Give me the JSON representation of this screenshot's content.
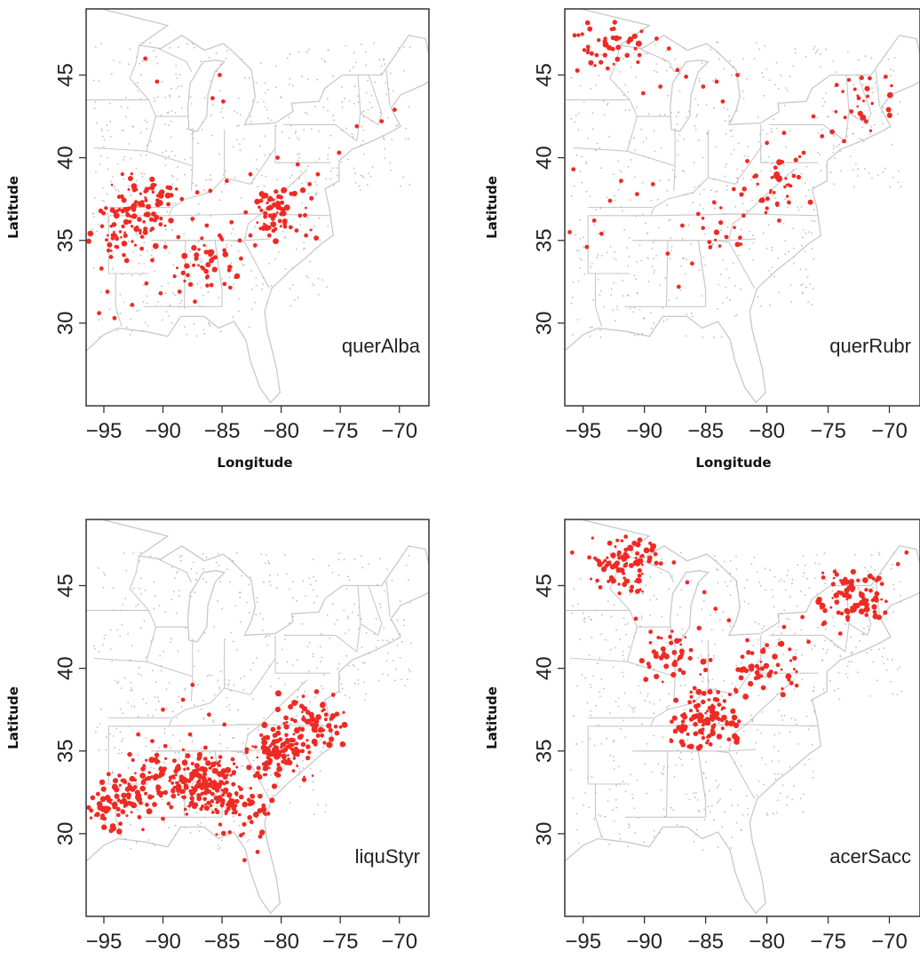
{
  "figure": {
    "title": ""
  },
  "colors": {
    "presence": "#ee2a24",
    "background_plots": "#bdbdbd",
    "state_lines": "#c8c8c8",
    "frame": "#333333"
  },
  "chart_data": [
    {
      "type": "scatter",
      "panel_label": "querAlba",
      "xlabel": "Longitude",
      "ylabel": "Latitude",
      "xticks": [
        "-95",
        "-90",
        "-85",
        "-80",
        "-75",
        "-70"
      ],
      "yticks": [
        "30",
        "35",
        "40",
        "45"
      ],
      "xlim": [
        -96.5,
        -67.5
      ],
      "ylim": [
        25.0,
        49.0
      ],
      "series": [
        {
          "values": [
            [
              -91.5,
              46.0
            ],
            [
              -90.5,
              44.6
            ],
            [
              -85.8,
              43.6
            ],
            [
              -85.2,
              45.0
            ],
            [
              -84.9,
              43.4
            ],
            [
              -71.5,
              42.2
            ],
            [
              -70.4,
              42.9
            ],
            [
              -73.6,
              41.9
            ],
            [
              -75.1,
              40.3
            ],
            [
              -89.6,
              38.2
            ],
            [
              -88.4,
              37.5
            ],
            [
              -87.1,
              37.9
            ],
            [
              -86.0,
              38.0
            ],
            [
              -84.6,
              38.6
            ],
            [
              -82.6,
              39.0
            ],
            [
              -80.3,
              40.0
            ],
            [
              -78.6,
              39.6
            ],
            [
              -76.9,
              39.0
            ],
            [
              -77.6,
              38.4
            ],
            [
              -78.9,
              37.8
            ],
            [
              -79.9,
              36.9
            ],
            [
              -80.7,
              36.3
            ],
            [
              -81.5,
              35.7
            ],
            [
              -82.6,
              35.3
            ],
            [
              -83.5,
              35.0
            ],
            [
              -84.8,
              34.4
            ],
            [
              -85.8,
              33.9
            ],
            [
              -86.6,
              33.3
            ],
            [
              -87.9,
              32.9
            ],
            [
              -88.6,
              31.9
            ],
            [
              -87.3,
              31.3
            ],
            [
              -85.9,
              32.3
            ],
            [
              -84.4,
              33.2
            ],
            [
              -83.4,
              33.9
            ],
            [
              -82.2,
              34.7
            ],
            [
              -81.0,
              35.3
            ],
            [
              -79.7,
              36.0
            ],
            [
              -78.7,
              35.6
            ],
            [
              -77.9,
              35.3
            ],
            [
              -78.4,
              36.5
            ],
            [
              -80.0,
              37.6
            ],
            [
              -81.7,
              37.4
            ],
            [
              -83.0,
              36.7
            ],
            [
              -84.2,
              36.1
            ],
            [
              -85.2,
              35.3
            ],
            [
              -86.3,
              35.9
            ],
            [
              -87.5,
              36.3
            ],
            [
              -88.7,
              35.2
            ],
            [
              -89.8,
              34.6
            ],
            [
              -90.9,
              33.8
            ],
            [
              -91.8,
              34.5
            ],
            [
              -92.3,
              35.7
            ],
            [
              -93.2,
              36.9
            ],
            [
              -93.9,
              35.1
            ],
            [
              -94.4,
              34.0
            ],
            [
              -95.2,
              33.3
            ],
            [
              -94.7,
              31.9
            ],
            [
              -95.4,
              30.6
            ],
            [
              -94.1,
              30.3
            ],
            [
              -92.6,
              31.1
            ],
            [
              -91.4,
              32.4
            ],
            [
              -90.2,
              31.8
            ],
            [
              -79.2,
              35.8
            ]
          ]
        }
      ],
      "clusters": [
        {
          "center": [
            -91.5,
            37.3
          ],
          "count": 70
        },
        {
          "center": [
            -93.5,
            35.6
          ],
          "count": 45
        },
        {
          "center": [
            -80.0,
            36.6
          ],
          "count": 55
        },
        {
          "center": [
            -86.5,
            33.6
          ],
          "count": 40
        }
      ]
    },
    {
      "type": "scatter",
      "panel_label": "querRubr",
      "xlabel": "Longitude",
      "ylabel": "Latitude",
      "xticks": [
        "-95",
        "-90",
        "-85",
        "-80",
        "-75",
        "-70"
      ],
      "yticks": [
        "30",
        "35",
        "40",
        "45"
      ],
      "xlim": [
        -96.5,
        -67.5
      ],
      "ylim": [
        25.0,
        49.0
      ],
      "series": [
        {
          "values": [
            [
              -95.7,
              47.4
            ],
            [
              -94.6,
              46.7
            ],
            [
              -93.9,
              46.2
            ],
            [
              -92.5,
              47.8
            ],
            [
              -91.3,
              47.0
            ],
            [
              -90.4,
              46.2
            ],
            [
              -89.0,
              47.2
            ],
            [
              -88.0,
              46.6
            ],
            [
              -87.3,
              45.3
            ],
            [
              -86.6,
              44.9
            ],
            [
              -85.2,
              44.3
            ],
            [
              -84.1,
              44.6
            ],
            [
              -83.6,
              43.4
            ],
            [
              -82.4,
              45.0
            ],
            [
              -74.3,
              44.4
            ],
            [
              -72.5,
              43.6
            ],
            [
              -71.6,
              44.8
            ],
            [
              -70.3,
              44.9
            ],
            [
              -71.9,
              42.2
            ],
            [
              -73.1,
              42.8
            ],
            [
              -76.2,
              42.5
            ],
            [
              -78.6,
              41.5
            ],
            [
              -80.0,
              40.9
            ],
            [
              -81.6,
              39.8
            ],
            [
              -79.3,
              39.4
            ],
            [
              -77.8,
              38.9
            ],
            [
              -82.7,
              38.1
            ],
            [
              -84.3,
              37.3
            ],
            [
              -85.6,
              36.6
            ],
            [
              -86.9,
              35.9
            ],
            [
              -88.1,
              34.2
            ],
            [
              -87.2,
              32.2
            ],
            [
              -94.1,
              36.2
            ],
            [
              -93.5,
              35.4
            ],
            [
              -94.7,
              34.6
            ],
            [
              -92.8,
              37.4
            ],
            [
              -96.1,
              35.5
            ],
            [
              -95.8,
              39.3
            ],
            [
              -91.9,
              38.6
            ],
            [
              -90.6,
              37.8
            ],
            [
              -89.3,
              38.4
            ],
            [
              -80.5,
              37.4
            ],
            [
              -81.9,
              36.5
            ],
            [
              -79.0,
              36.2
            ],
            [
              -83.3,
              35.2
            ],
            [
              -84.7,
              34.9
            ],
            [
              -86.1,
              33.6
            ],
            [
              -78.2,
              37.3
            ],
            [
              -77.0,
              40.3
            ],
            [
              -75.5,
              41.3
            ],
            [
              -73.7,
              41.0
            ],
            [
              -88.7,
              44.3
            ],
            [
              -90.1,
              43.9
            ],
            [
              -93.0,
              45.4
            ]
          ]
        }
      ],
      "clusters": [
        {
          "center": [
            -93.0,
            46.6
          ],
          "count": 35
        },
        {
          "center": [
            -79.5,
            38.6
          ],
          "count": 35
        },
        {
          "center": [
            -83.7,
            35.2
          ],
          "count": 12
        },
        {
          "center": [
            -72.5,
            43.3
          ],
          "count": 20
        }
      ]
    },
    {
      "type": "scatter",
      "panel_label": "liquStyr",
      "xlabel": "Longitude",
      "ylabel": "Latitude",
      "xticks": [
        "-95",
        "-90",
        "-85",
        "-80",
        "-75",
        "-70"
      ],
      "yticks": [
        "30",
        "35",
        "40",
        "45"
      ],
      "xlim": [
        -96.5,
        -67.5
      ],
      "ylim": [
        25.0,
        49.0
      ],
      "series": [
        {
          "values": [
            [
              -75.6,
              38.4
            ],
            [
              -76.2,
              37.2
            ],
            [
              -77.4,
              36.6
            ],
            [
              -78.7,
              36.3
            ],
            [
              -79.9,
              35.4
            ],
            [
              -81.1,
              34.6
            ],
            [
              -82.2,
              33.5
            ],
            [
              -83.4,
              32.7
            ],
            [
              -84.6,
              33.1
            ],
            [
              -85.8,
              32.4
            ],
            [
              -87.0,
              33.1
            ],
            [
              -88.2,
              32.2
            ],
            [
              -89.3,
              31.6
            ],
            [
              -90.4,
              32.6
            ],
            [
              -91.6,
              33.2
            ],
            [
              -92.9,
              32.2
            ],
            [
              -94.1,
              31.6
            ],
            [
              -95.1,
              31.1
            ],
            [
              -95.5,
              32.4
            ],
            [
              -93.6,
              30.6
            ],
            [
              -92.0,
              31.0
            ],
            [
              -90.0,
              30.9
            ],
            [
              -88.7,
              34.1
            ],
            [
              -89.8,
              35.3
            ],
            [
              -87.7,
              36.0
            ],
            [
              -86.4,
              35.2
            ],
            [
              -84.1,
              34.5
            ],
            [
              -82.9,
              35.1
            ],
            [
              -81.4,
              35.8
            ],
            [
              -80.2,
              36.4
            ],
            [
              -78.2,
              35.0
            ],
            [
              -77.1,
              35.4
            ],
            [
              -81.5,
              31.7
            ],
            [
              -82.5,
              30.7
            ],
            [
              -83.4,
              29.9
            ],
            [
              -82.0,
              28.9
            ],
            [
              -83.1,
              28.4
            ],
            [
              -92.1,
              36.0
            ],
            [
              -90.9,
              35.6
            ],
            [
              -88.3,
              38.1
            ],
            [
              -86.1,
              37.2
            ],
            [
              -84.8,
              36.6
            ],
            [
              -87.5,
              39.0
            ],
            [
              -90.0,
              37.5
            ],
            [
              -94.6,
              33.6
            ]
          ]
        }
      ],
      "clusters": [
        {
          "center": [
            -86.5,
            33.0
          ],
          "count": 160
        },
        {
          "center": [
            -80.0,
            35.0
          ],
          "count": 110
        },
        {
          "center": [
            -94.0,
            31.8
          ],
          "count": 70
        },
        {
          "center": [
            -90.8,
            33.3
          ],
          "count": 60
        },
        {
          "center": [
            -77.5,
            36.8
          ],
          "count": 60
        },
        {
          "center": [
            -83.5,
            31.5
          ],
          "count": 45
        }
      ]
    },
    {
      "type": "scatter",
      "panel_label": "acerSacc",
      "xlabel": "Longitude",
      "ylabel": "Latitude",
      "xticks": [
        "-95",
        "-90",
        "-85",
        "-80",
        "-75",
        "-70"
      ],
      "yticks": [
        "30",
        "35",
        "40",
        "45"
      ],
      "xlim": [
        -96.5,
        -67.5
      ],
      "ylim": [
        25.0,
        49.0
      ],
      "series": [
        {
          "values": [
            [
              -95.9,
              47.0
            ],
            [
              -94.5,
              46.7
            ],
            [
              -93.1,
              46.2
            ],
            [
              -91.6,
              46.6
            ],
            [
              -90.4,
              45.6
            ],
            [
              -89.1,
              46.9
            ],
            [
              -87.6,
              46.4
            ],
            [
              -86.5,
              45.2
            ],
            [
              -85.1,
              44.6
            ],
            [
              -84.2,
              43.6
            ],
            [
              -83.1,
              42.9
            ],
            [
              -81.6,
              41.7
            ],
            [
              -80.0,
              41.4
            ],
            [
              -78.6,
              42.5
            ],
            [
              -77.1,
              43.1
            ],
            [
              -75.4,
              43.8
            ],
            [
              -73.7,
              44.4
            ],
            [
              -72.1,
              44.2
            ],
            [
              -70.6,
              45.1
            ],
            [
              -69.3,
              46.3
            ],
            [
              -68.6,
              47.0
            ],
            [
              -71.2,
              43.4
            ],
            [
              -74.0,
              42.1
            ],
            [
              -76.6,
              41.6
            ],
            [
              -79.1,
              40.2
            ],
            [
              -80.9,
              39.4
            ],
            [
              -82.5,
              38.6
            ],
            [
              -83.9,
              37.8
            ],
            [
              -85.3,
              37.1
            ],
            [
              -86.7,
              36.3
            ],
            [
              -87.8,
              35.6
            ],
            [
              -84.6,
              35.4
            ],
            [
              -83.1,
              35.7
            ],
            [
              -85.9,
              38.8
            ],
            [
              -87.1,
              39.9
            ],
            [
              -88.4,
              40.9
            ],
            [
              -89.5,
              42.2
            ],
            [
              -90.7,
              43.0
            ],
            [
              -89.6,
              40.1
            ],
            [
              -87.9,
              41.9
            ],
            [
              -86.2,
              41.1
            ],
            [
              -84.6,
              40.5
            ],
            [
              -82.0,
              40.7
            ],
            [
              -78.0,
              39.1
            ],
            [
              -93.6,
              44.9
            ]
          ]
        }
      ],
      "clusters": [
        {
          "center": [
            -91.5,
            46.4
          ],
          "count": 90
        },
        {
          "center": [
            -85.0,
            37.0
          ],
          "count": 110
        },
        {
          "center": [
            -73.0,
            44.4
          ],
          "count": 80
        },
        {
          "center": [
            -87.5,
            41.0
          ],
          "count": 40
        },
        {
          "center": [
            -80.0,
            40.0
          ],
          "count": 45
        }
      ]
    }
  ]
}
